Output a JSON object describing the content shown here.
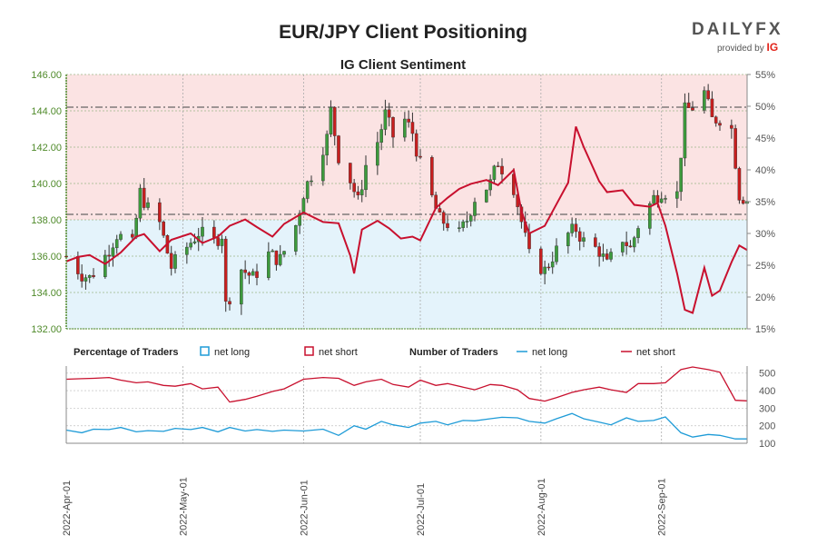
{
  "header": {
    "title": "EUR/JPY Client Positioning",
    "subtitle": "IG Client Sentiment",
    "logo_word": "DAILYFX",
    "logo_provided": "provided by",
    "logo_ig": "IG"
  },
  "legend": {
    "pct_title": "Percentage of Traders",
    "pct_long": "net long",
    "pct_short": "net short",
    "num_title": "Number of Traders",
    "num_long": "net long",
    "num_short": "net short"
  },
  "colors": {
    "long": "#1e9bd7",
    "short": "#c8102e",
    "long_bg": "#e4f3fb",
    "short_bg": "#fbe3e3",
    "up": "#3c9b3c",
    "down": "#c81e1e",
    "axis_left": "#4f8a2a"
  },
  "chart_data": [
    {
      "type": "candlestick",
      "title": "EUR/JPY Client Positioning",
      "subtitle": "IG Client Sentiment",
      "y_left_ticks": [
        "132.00",
        "134.00",
        "136.00",
        "138.00",
        "140.00",
        "142.00",
        "144.00",
        "146.00"
      ],
      "y_right_ticks": [
        "15%",
        "20%",
        "25%",
        "30%",
        "35%",
        "40%",
        "45%",
        "50%",
        "55%"
      ],
      "ylim_left": [
        132,
        146
      ],
      "ylim_right": [
        15,
        55
      ],
      "reference_lines": [
        144.2,
        138.3
      ],
      "date_ticks": [
        "2022-Apr-01",
        "2022-May-01",
        "2022-Jun-01",
        "2022-Jul-01",
        "2022-Aug-01",
        "2022-Sep-01"
      ],
      "date_range": [
        "2022-04-01",
        "2022-09-23"
      ],
      "price_anchors": [
        [
          "2022-04-01",
          136.0
        ],
        [
          "2022-04-05",
          135.0
        ],
        [
          "2022-04-07",
          134.8
        ],
        [
          "2022-04-11",
          136.0
        ],
        [
          "2022-04-14",
          137.2
        ],
        [
          "2022-04-18",
          136.6
        ],
        [
          "2022-04-20",
          139.5
        ],
        [
          "2022-04-22",
          138.6
        ],
        [
          "2022-04-25",
          137.8
        ],
        [
          "2022-04-27",
          136.2
        ],
        [
          "2022-04-28",
          135.4
        ],
        [
          "2022-05-02",
          136.5
        ],
        [
          "2022-05-05",
          137.3
        ],
        [
          "2022-05-09",
          136.8
        ],
        [
          "2022-05-11",
          137.2
        ],
        [
          "2022-05-12",
          133.3
        ],
        [
          "2022-05-16",
          135.3
        ],
        [
          "2022-05-19",
          134.8
        ],
        [
          "2022-05-23",
          136.1
        ],
        [
          "2022-05-26",
          135.8
        ],
        [
          "2022-05-30",
          137.7
        ],
        [
          "2022-06-01",
          139.5
        ],
        [
          "2022-06-03",
          140.5
        ],
        [
          "2022-06-07",
          142.5
        ],
        [
          "2022-06-08",
          144.0
        ],
        [
          "2022-06-10",
          141.5
        ],
        [
          "2022-06-13",
          140.2
        ],
        [
          "2022-06-15",
          139.0
        ],
        [
          "2022-06-17",
          141.0
        ],
        [
          "2022-06-20",
          142.3
        ],
        [
          "2022-06-22",
          143.8
        ],
        [
          "2022-06-24",
          142.6
        ],
        [
          "2022-06-27",
          143.5
        ],
        [
          "2022-06-29",
          142.8
        ],
        [
          "2022-07-01",
          141.0
        ],
        [
          "2022-07-04",
          139.2
        ],
        [
          "2022-07-06",
          138.0
        ],
        [
          "2022-07-08",
          137.8
        ],
        [
          "2022-07-11",
          137.2
        ],
        [
          "2022-07-13",
          138.0
        ],
        [
          "2022-07-15",
          139.2
        ],
        [
          "2022-07-19",
          140.0
        ],
        [
          "2022-07-21",
          141.2
        ],
        [
          "2022-07-25",
          139.8
        ],
        [
          "2022-07-27",
          137.9
        ],
        [
          "2022-07-29",
          136.0
        ],
        [
          "2022-08-02",
          135.2
        ],
        [
          "2022-08-04",
          136.0
        ],
        [
          "2022-08-08",
          137.2
        ],
        [
          "2022-08-10",
          137.5
        ],
        [
          "2022-08-12",
          136.8
        ],
        [
          "2022-08-16",
          136.3
        ],
        [
          "2022-08-18",
          135.5
        ],
        [
          "2022-08-22",
          137.0
        ],
        [
          "2022-08-24",
          136.4
        ],
        [
          "2022-08-26",
          137.7
        ],
        [
          "2022-08-30",
          139.2
        ],
        [
          "2022-09-01",
          139.6
        ],
        [
          "2022-09-05",
          139.4
        ],
        [
          "2022-09-07",
          144.0
        ],
        [
          "2022-09-09",
          144.2
        ],
        [
          "2022-09-12",
          145.0
        ],
        [
          "2022-09-14",
          143.5
        ],
        [
          "2022-09-16",
          143.6
        ],
        [
          "2022-09-19",
          143.0
        ],
        [
          "2022-09-21",
          139.4
        ],
        [
          "2022-09-23",
          139.1
        ]
      ],
      "series": [
        {
          "name": "net short",
          "unit": "%",
          "points": [
            [
              "2022-04-01",
              25.6
            ],
            [
              "2022-04-04",
              26.3
            ],
            [
              "2022-04-07",
              26.6
            ],
            [
              "2022-04-11",
              25.2
            ],
            [
              "2022-04-15",
              27.0
            ],
            [
              "2022-04-19",
              29.5
            ],
            [
              "2022-04-21",
              29.9
            ],
            [
              "2022-04-25",
              27.2
            ],
            [
              "2022-04-28",
              29.0
            ],
            [
              "2022-05-03",
              30.0
            ],
            [
              "2022-05-06",
              28.5
            ],
            [
              "2022-05-10",
              29.5
            ],
            [
              "2022-05-13",
              31.2
            ],
            [
              "2022-05-17",
              32.2
            ],
            [
              "2022-05-20",
              31.0
            ],
            [
              "2022-05-24",
              29.5
            ],
            [
              "2022-05-27",
              31.5
            ],
            [
              "2022-06-01",
              33.3
            ],
            [
              "2022-06-06",
              31.8
            ],
            [
              "2022-06-10",
              31.6
            ],
            [
              "2022-06-13",
              26.5
            ],
            [
              "2022-06-14",
              23.7
            ],
            [
              "2022-06-16",
              30.6
            ],
            [
              "2022-06-20",
              32.0
            ],
            [
              "2022-06-23",
              30.8
            ],
            [
              "2022-06-26",
              29.2
            ],
            [
              "2022-06-29",
              29.5
            ],
            [
              "2022-07-01",
              28.9
            ],
            [
              "2022-07-05",
              34.0
            ],
            [
              "2022-07-08",
              35.6
            ],
            [
              "2022-07-11",
              37.0
            ],
            [
              "2022-07-14",
              37.8
            ],
            [
              "2022-07-18",
              38.4
            ],
            [
              "2022-07-21",
              37.6
            ],
            [
              "2022-07-25",
              40.0
            ],
            [
              "2022-07-27",
              33.5
            ],
            [
              "2022-07-29",
              30.0
            ],
            [
              "2022-08-02",
              31.2
            ],
            [
              "2022-08-05",
              34.6
            ],
            [
              "2022-08-08",
              38.0
            ],
            [
              "2022-08-10",
              46.8
            ],
            [
              "2022-08-12",
              43.6
            ],
            [
              "2022-08-16",
              38.2
            ],
            [
              "2022-08-18",
              36.5
            ],
            [
              "2022-08-22",
              36.8
            ],
            [
              "2022-08-25",
              34.5
            ],
            [
              "2022-08-29",
              34.2
            ],
            [
              "2022-08-31",
              34.8
            ],
            [
              "2022-09-02",
              31.2
            ],
            [
              "2022-09-05",
              23.7
            ],
            [
              "2022-09-07",
              18.0
            ],
            [
              "2022-09-09",
              17.5
            ],
            [
              "2022-09-12",
              24.6
            ],
            [
              "2022-09-14",
              20.2
            ],
            [
              "2022-09-16",
              21.0
            ],
            [
              "2022-09-19",
              25.5
            ],
            [
              "2022-09-21",
              28.1
            ],
            [
              "2022-09-23",
              27.4
            ]
          ]
        }
      ]
    },
    {
      "type": "line",
      "y_ticks": [
        "100",
        "200",
        "300",
        "400",
        "500"
      ],
      "ylim": [
        100,
        540
      ],
      "series": [
        {
          "name": "net long",
          "points": [
            [
              "2022-04-01",
              175
            ],
            [
              "2022-04-05",
              160
            ],
            [
              "2022-04-08",
              180
            ],
            [
              "2022-04-12",
              178
            ],
            [
              "2022-04-15",
              190
            ],
            [
              "2022-04-19",
              165
            ],
            [
              "2022-04-22",
              172
            ],
            [
              "2022-04-26",
              168
            ],
            [
              "2022-04-29",
              185
            ],
            [
              "2022-05-03",
              178
            ],
            [
              "2022-05-06",
              190
            ],
            [
              "2022-05-10",
              165
            ],
            [
              "2022-05-13",
              190
            ],
            [
              "2022-05-17",
              170
            ],
            [
              "2022-05-20",
              178
            ],
            [
              "2022-05-24",
              168
            ],
            [
              "2022-05-27",
              175
            ],
            [
              "2022-06-01",
              170
            ],
            [
              "2022-06-06",
              180
            ],
            [
              "2022-06-10",
              145
            ],
            [
              "2022-06-14",
              200
            ],
            [
              "2022-06-17",
              180
            ],
            [
              "2022-06-21",
              225
            ],
            [
              "2022-06-24",
              205
            ],
            [
              "2022-06-28",
              190
            ],
            [
              "2022-07-01",
              215
            ],
            [
              "2022-07-05",
              225
            ],
            [
              "2022-07-08",
              205
            ],
            [
              "2022-07-12",
              230
            ],
            [
              "2022-07-15",
              228
            ],
            [
              "2022-07-19",
              240
            ],
            [
              "2022-07-22",
              248
            ],
            [
              "2022-07-26",
              245
            ],
            [
              "2022-07-29",
              225
            ],
            [
              "2022-08-02",
              215
            ],
            [
              "2022-08-05",
              240
            ],
            [
              "2022-08-09",
              270
            ],
            [
              "2022-08-12",
              240
            ],
            [
              "2022-08-16",
              220
            ],
            [
              "2022-08-19",
              205
            ],
            [
              "2022-08-23",
              245
            ],
            [
              "2022-08-26",
              225
            ],
            [
              "2022-08-30",
              230
            ],
            [
              "2022-09-02",
              250
            ],
            [
              "2022-09-06",
              160
            ],
            [
              "2022-09-09",
              135
            ],
            [
              "2022-09-13",
              150
            ],
            [
              "2022-09-16",
              145
            ],
            [
              "2022-09-20",
              125
            ],
            [
              "2022-09-23",
              125
            ]
          ]
        },
        {
          "name": "net short",
          "points": [
            [
              "2022-04-01",
              465
            ],
            [
              "2022-04-05",
              468
            ],
            [
              "2022-04-08",
              470
            ],
            [
              "2022-04-12",
              475
            ],
            [
              "2022-04-15",
              460
            ],
            [
              "2022-04-19",
              445
            ],
            [
              "2022-04-22",
              450
            ],
            [
              "2022-04-26",
              430
            ],
            [
              "2022-04-29",
              425
            ],
            [
              "2022-05-03",
              440
            ],
            [
              "2022-05-06",
              410
            ],
            [
              "2022-05-10",
              420
            ],
            [
              "2022-05-13",
              335
            ],
            [
              "2022-05-17",
              350
            ],
            [
              "2022-05-20",
              368
            ],
            [
              "2022-05-24",
              395
            ],
            [
              "2022-05-27",
              410
            ],
            [
              "2022-06-01",
              465
            ],
            [
              "2022-06-06",
              475
            ],
            [
              "2022-06-10",
              470
            ],
            [
              "2022-06-14",
              430
            ],
            [
              "2022-06-17",
              450
            ],
            [
              "2022-06-21",
              465
            ],
            [
              "2022-06-24",
              435
            ],
            [
              "2022-06-28",
              420
            ],
            [
              "2022-07-01",
              460
            ],
            [
              "2022-07-05",
              430
            ],
            [
              "2022-07-08",
              440
            ],
            [
              "2022-07-12",
              420
            ],
            [
              "2022-07-15",
              405
            ],
            [
              "2022-07-19",
              435
            ],
            [
              "2022-07-22",
              430
            ],
            [
              "2022-07-26",
              405
            ],
            [
              "2022-07-29",
              355
            ],
            [
              "2022-08-02",
              340
            ],
            [
              "2022-08-05",
              360
            ],
            [
              "2022-08-09",
              390
            ],
            [
              "2022-08-12",
              405
            ],
            [
              "2022-08-16",
              420
            ],
            [
              "2022-08-19",
              405
            ],
            [
              "2022-08-23",
              390
            ],
            [
              "2022-08-26",
              440
            ],
            [
              "2022-08-30",
              440
            ],
            [
              "2022-09-02",
              445
            ],
            [
              "2022-09-06",
              520
            ],
            [
              "2022-09-09",
              535
            ],
            [
              "2022-09-13",
              520
            ],
            [
              "2022-09-16",
              505
            ],
            [
              "2022-09-20",
              345
            ],
            [
              "2022-09-23",
              342
            ]
          ]
        }
      ]
    }
  ]
}
